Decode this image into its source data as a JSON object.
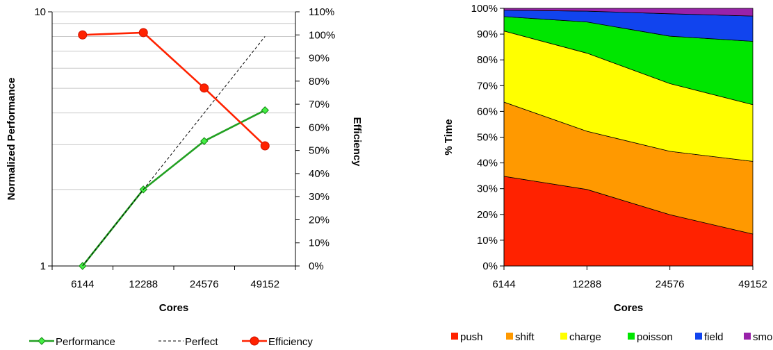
{
  "chart_data": [
    {
      "type": "line",
      "title": "",
      "xlabel": "Cores",
      "ylabel": "Normalized Performance",
      "y2label": "Efficiency",
      "yscale": "log",
      "ylim": [
        1,
        10
      ],
      "y_ticks": [
        "1",
        "10"
      ],
      "y2lim": [
        0,
        110
      ],
      "y2_ticks": [
        "0%",
        "10%",
        "20%",
        "30%",
        "40%",
        "50%",
        "60%",
        "70%",
        "80%",
        "90%",
        "100%",
        "110%"
      ],
      "categories": [
        "6144",
        "12288",
        "24576",
        "49152"
      ],
      "grid": true,
      "legend_position": "bottom",
      "series": [
        {
          "name": "Performance",
          "axis": "left",
          "values": [
            1.0,
            2.0,
            3.1,
            4.1
          ],
          "color": "#22a022",
          "marker": "diamond-marker"
        },
        {
          "name": "Perfect",
          "axis": "left",
          "values": [
            1.0,
            2.0,
            4.0,
            8.0
          ],
          "color": "#000000",
          "dashed": true
        },
        {
          "name": "Efficiency",
          "axis": "right",
          "values": [
            100,
            101,
            77,
            52
          ],
          "color": "#ff2200",
          "marker": "circle-marker"
        }
      ]
    },
    {
      "type": "area",
      "stacked": true,
      "title": "",
      "xlabel": "Cores",
      "ylabel": "% Time",
      "ylim": [
        0,
        100
      ],
      "y_ticks": [
        "0%",
        "10%",
        "20%",
        "30%",
        "40%",
        "50%",
        "60%",
        "70%",
        "80%",
        "90%",
        "100%"
      ],
      "categories": [
        "6144",
        "12288",
        "24576",
        "49152"
      ],
      "legend_position": "bottom",
      "series": [
        {
          "name": "push",
          "values": [
            34.8,
            29.7,
            19.9,
            12.4
          ],
          "color": "#ff2200"
        },
        {
          "name": "shift",
          "values": [
            28.8,
            22.6,
            24.6,
            28.2
          ],
          "color": "#ff9900"
        },
        {
          "name": "charge",
          "values": [
            27.6,
            30.3,
            26.3,
            22.0
          ],
          "color": "#ffff00"
        },
        {
          "name": "poisson",
          "values": [
            5.6,
            12.1,
            18.4,
            24.6
          ],
          "color": "#00e600"
        },
        {
          "name": "field",
          "values": [
            2.5,
            4.2,
            8.7,
            9.8
          ],
          "color": "#1144ee"
        },
        {
          "name": "smooth",
          "values": [
            0.7,
            1.1,
            2.1,
            3.0
          ],
          "color": "#9922aa"
        }
      ]
    }
  ]
}
